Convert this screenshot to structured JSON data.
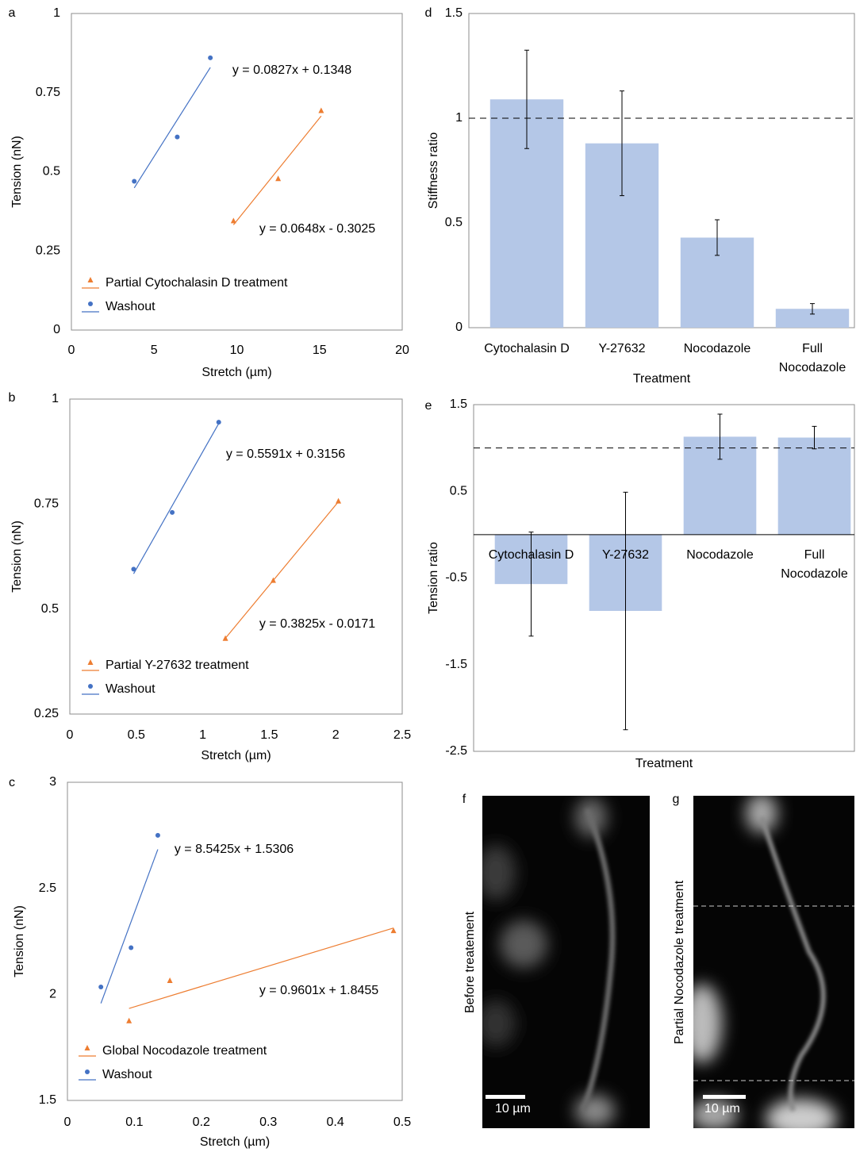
{
  "chart_data": [
    {
      "type": "scatter",
      "panel": "a",
      "x_label": "Stretch (µm)",
      "y_label": "Tension (nN)",
      "xlim": [
        0,
        20
      ],
      "xticks": [
        0,
        5,
        10,
        15,
        20
      ],
      "ylim": [
        0,
        1
      ],
      "yticks": [
        0,
        0.25,
        0.5,
        0.75,
        1
      ],
      "legend": "lower left",
      "series": [
        {
          "name": "Partial Cytochalasin D treatment",
          "color": "#ed7d31",
          "marker": "triangle",
          "x": [
            9.8,
            12.5,
            15.1
          ],
          "values": [
            0.345,
            0.478,
            0.693
          ],
          "trendline": {
            "slope": 0.0648,
            "intercept": -0.3025,
            "label": "y = 0.0648x - 0.3025"
          }
        },
        {
          "name": "Washout",
          "color": "#4472c4",
          "marker": "circle",
          "x": [
            3.8,
            6.4,
            8.4
          ],
          "values": [
            0.47,
            0.61,
            0.86
          ],
          "trendline": {
            "slope": 0.0827,
            "intercept": 0.1348,
            "label": "y = 0.0827x + 0.1348"
          }
        }
      ]
    },
    {
      "type": "scatter",
      "panel": "b",
      "x_label": "Stretch (µm)",
      "y_label": "Tension (nN)",
      "xlim": [
        0,
        2.5
      ],
      "xticks": [
        0,
        0.5,
        1,
        1.5,
        2,
        2.5
      ],
      "ylim": [
        0.25,
        1
      ],
      "yticks": [
        0.25,
        0.5,
        0.75,
        1
      ],
      "legend": "lower left",
      "series": [
        {
          "name": "Partial Y-27632 treatment",
          "color": "#ed7d31",
          "marker": "triangle",
          "x": [
            1.17,
            1.53,
            2.02
          ],
          "values": [
            0.43,
            0.568,
            0.757
          ],
          "trendline": {
            "slope": 0.3825,
            "intercept": -0.0171,
            "label": "y = 0.3825x - 0.0171"
          }
        },
        {
          "name": "Washout",
          "color": "#4472c4",
          "marker": "circle",
          "x": [
            0.48,
            0.77,
            1.12
          ],
          "values": [
            0.595,
            0.73,
            0.945
          ],
          "trendline": {
            "slope": 0.5591,
            "intercept": 0.3156,
            "label": "y = 0.5591x + 0.3156"
          }
        }
      ]
    },
    {
      "type": "scatter",
      "panel": "c",
      "x_label": "Stretch (µm)",
      "y_label": "Tension (nN)",
      "xlim": [
        0,
        0.5
      ],
      "xticks": [
        0,
        0.1,
        0.2,
        0.3,
        0.4,
        0.5
      ],
      "ylim": [
        1.5,
        3
      ],
      "yticks": [
        1.5,
        2,
        2.5,
        3
      ],
      "legend": "lower left",
      "series": [
        {
          "name": "Global Nocodazole treatment",
          "color": "#ed7d31",
          "marker": "triangle",
          "x": [
            0.092,
            0.153,
            0.487
          ],
          "values": [
            1.875,
            2.065,
            2.3
          ],
          "trendline": {
            "slope": 0.9601,
            "intercept": 1.8455,
            "label": "y = 0.9601x + 1.8455"
          }
        },
        {
          "name": "Washout",
          "color": "#4472c4",
          "marker": "circle",
          "x": [
            0.05,
            0.095,
            0.135
          ],
          "values": [
            2.035,
            2.22,
            2.75
          ],
          "trendline": {
            "slope": 8.5425,
            "intercept": 1.5306,
            "label": "y = 8.5425x + 1.5306"
          }
        }
      ]
    },
    {
      "type": "bar",
      "panel": "d",
      "x_label": "Treatment",
      "y_label": "Stiffness ratio",
      "categories": [
        "Cytochalasin D",
        "Y-27632",
        "Nocodazole",
        "Full\nNocodazole"
      ],
      "values": [
        1.09,
        0.88,
        0.43,
        0.09
      ],
      "errors": [
        0.235,
        0.25,
        0.085,
        0.025
      ],
      "color": "#b4c7e7",
      "reference_line": 1,
      "ylim": [
        0,
        1.5
      ],
      "yticks": [
        0,
        0.5,
        1,
        1.5
      ]
    },
    {
      "type": "bar",
      "panel": "e",
      "x_label": "Treatment",
      "y_label": "Tension ratio",
      "categories": [
        "Cytochalasin D",
        "Y-27632",
        "Nocodazole",
        "Full\nNocodazole"
      ],
      "values": [
        -0.57,
        -0.88,
        1.13,
        1.12
      ],
      "errors": [
        0.6,
        1.37,
        0.26,
        0.13
      ],
      "color": "#b4c7e7",
      "reference_line": 1,
      "ylim": [
        -2.5,
        1.5
      ],
      "yticks": [
        -2.5,
        -1.5,
        -0.5,
        0.5,
        1.5
      ]
    }
  ],
  "images": [
    {
      "panel": "f",
      "caption": "Before treatement",
      "scale_bar": "10 µm"
    },
    {
      "panel": "g",
      "caption": "Partial Nocodazole treatment",
      "scale_bar": "10 µm"
    }
  ]
}
